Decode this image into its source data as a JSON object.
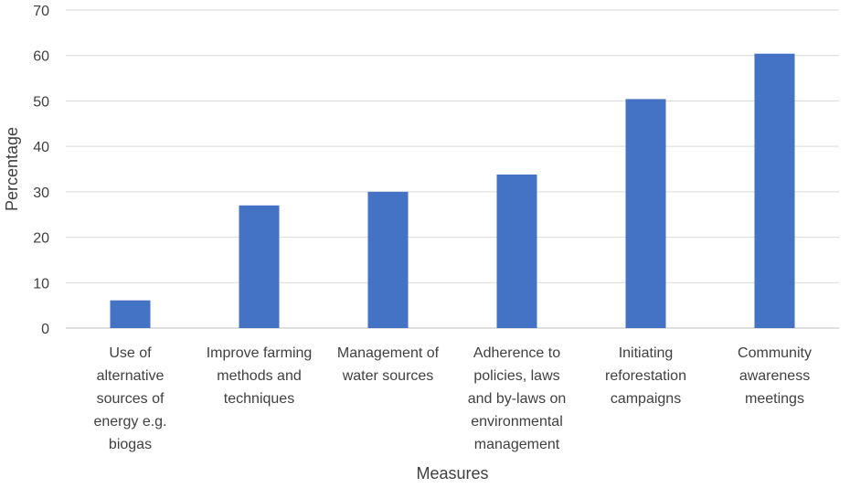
{
  "chart_data": {
    "type": "bar",
    "title": "",
    "xlabel": "Measures",
    "ylabel": "Percentage",
    "ylim": [
      0,
      70
    ],
    "y_ticks": [
      0,
      10,
      20,
      30,
      40,
      50,
      60,
      70
    ],
    "grid": true,
    "legend": "none",
    "bar_color": "#4472c4",
    "categories": [
      [
        "Use of",
        "alternative",
        "sources of",
        "energy e.g.",
        "biogas"
      ],
      [
        "Improve farming",
        "methods and",
        "techniques"
      ],
      [
        "Management of",
        "water sources"
      ],
      [
        "Adherence to",
        "policies, laws",
        "and by-laws on",
        "environmental",
        "management"
      ],
      [
        "Initiating",
        "reforestation",
        "campaigns"
      ],
      [
        "Community",
        "awareness",
        "meetings"
      ]
    ],
    "values": [
      6.1,
      27,
      30,
      33.8,
      50.4,
      60.4
    ]
  }
}
